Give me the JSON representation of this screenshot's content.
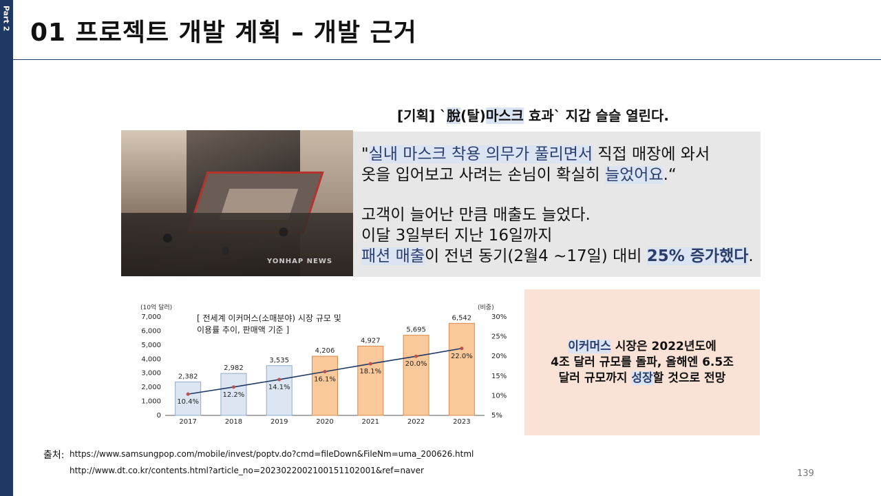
{
  "side_tab": "Part 2",
  "title": "01 프로젝트 개발 계획 – 개발 근거",
  "headline": {
    "prefix": "[기획] `",
    "hl1": "脫",
    "mid1": "(탈)",
    "hl2": "마스크",
    "suffix": " 효과` 지갑 슬슬 열린다."
  },
  "photo": {
    "watermark": "YONHAP NEWS"
  },
  "quote": {
    "l1_open": "\"",
    "l1_hl": "실내 마스크 착용 의무가 풀리면서",
    "l1_rest": " 직접 매장에 와서",
    "l2_pre": "옷을 입어보고 사려는 손님이 확실히 ",
    "l2_hl": "늘었어요",
    "l2_end": ".“",
    "l3": "고객이 늘어난 만큼 매출도 늘었다.",
    "l4": "이달 3일부터 지난 16일까지",
    "l5_hl": "패션 매출",
    "l5_mid": "이 전년 동기(2월4 ~17일) 대비 ",
    "l5_hl2": "25% 증가했다",
    "l5_end": "."
  },
  "chart_data": {
    "type": "bar",
    "title_lines": [
      "[ 전세계 이커머스(소매분야) 시장 규모 및",
      "이용률 추이, 판매액 기준 ]"
    ],
    "ylabel_left": "(10억 달러)",
    "ylabel_right": "(비중)",
    "categories": [
      "2017",
      "2018",
      "2019",
      "2020",
      "2021",
      "2022",
      "2023"
    ],
    "series": [
      {
        "values": [
          2382,
          2982,
          3535,
          4206,
          4927,
          5695,
          6542
        ],
        "labels": [
          "2,382",
          "2,982",
          "3,535",
          "4,206",
          "4,927",
          "5,695",
          "6,542"
        ]
      },
      {
        "values": [
          10.4,
          12.2,
          14.1,
          16.1,
          18.1,
          20.0,
          22.0
        ],
        "labels": [
          "10.4%",
          "12.2%",
          "14.1%",
          "16.1%",
          "18.1%",
          "20.0%",
          "22.0%"
        ]
      }
    ],
    "ylim": [
      0,
      7000
    ],
    "y2lim": [
      5,
      30
    ],
    "yticks": [
      "0",
      "1,000",
      "2,000",
      "3,000",
      "4,000",
      "5,000",
      "6,000",
      "7,000"
    ],
    "y2ticks": [
      "5%",
      "10%",
      "15%",
      "20%",
      "25%",
      "30%"
    ],
    "colors": {
      "past_bar": "#dce6f2",
      "forecast_bar": "#f9c89b",
      "line": "#1f3864",
      "marker": "#c0504d"
    }
  },
  "summary": {
    "l1_hl": "이커머스",
    "l1_rest": " 시장은 2022년도에",
    "l2": "4조 달러 규모를 돌파, 올해엔 6.5조",
    "l3_pre": "달러 규모까지 ",
    "l3_hl": "성장",
    "l3_rest": "할 것으로 전망"
  },
  "sources": {
    "label": "출처:",
    "url1": "https://www.samsungpop.com/mobile/invest/poptv.do?cmd=fileDown&FileNm=uma_200626.html",
    "url2": "http://www.dt.co.kr/contents.html?article_no=2023022002100151102001&ref=naver"
  },
  "page_number": "139"
}
